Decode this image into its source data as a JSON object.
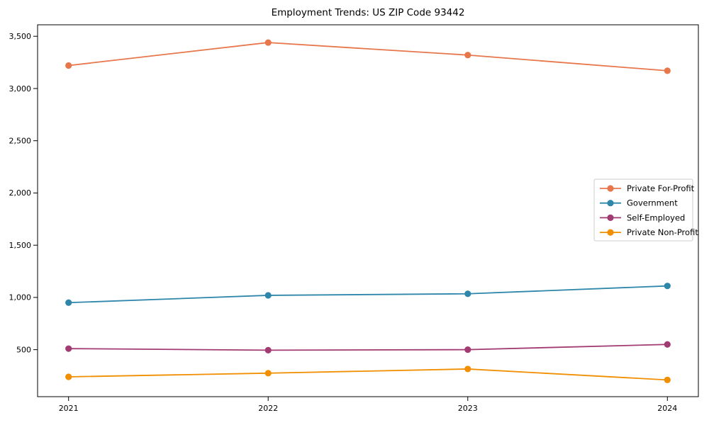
{
  "chart_data": {
    "type": "line",
    "title": "Employment Trends: US ZIP Code 93442",
    "xlabel": "",
    "ylabel": "",
    "categories": [
      "2021",
      "2022",
      "2023",
      "2024"
    ],
    "series": [
      {
        "name": "Private For-Profit",
        "color": "#E8764B",
        "values": [
          3220,
          3440,
          3320,
          3170
        ]
      },
      {
        "name": "Government",
        "color": "#2E86AB",
        "values": [
          950,
          1020,
          1035,
          1110
        ]
      },
      {
        "name": "Self-Employed",
        "color": "#A23B72",
        "values": [
          510,
          495,
          500,
          550
        ]
      },
      {
        "name": "Private Non-Profit",
        "color": "#F18F01",
        "values": [
          240,
          275,
          315,
          210
        ]
      }
    ],
    "ylim": [
      50,
      3610
    ],
    "yticks": [
      500,
      1000,
      1500,
      2000,
      2500,
      3000,
      3500
    ],
    "grid": false,
    "legend_position": "center right",
    "colors": {
      "spine": "#000000",
      "tick_label": "#000000",
      "legend_border": "#cccccc",
      "background": "#ffffff"
    }
  }
}
